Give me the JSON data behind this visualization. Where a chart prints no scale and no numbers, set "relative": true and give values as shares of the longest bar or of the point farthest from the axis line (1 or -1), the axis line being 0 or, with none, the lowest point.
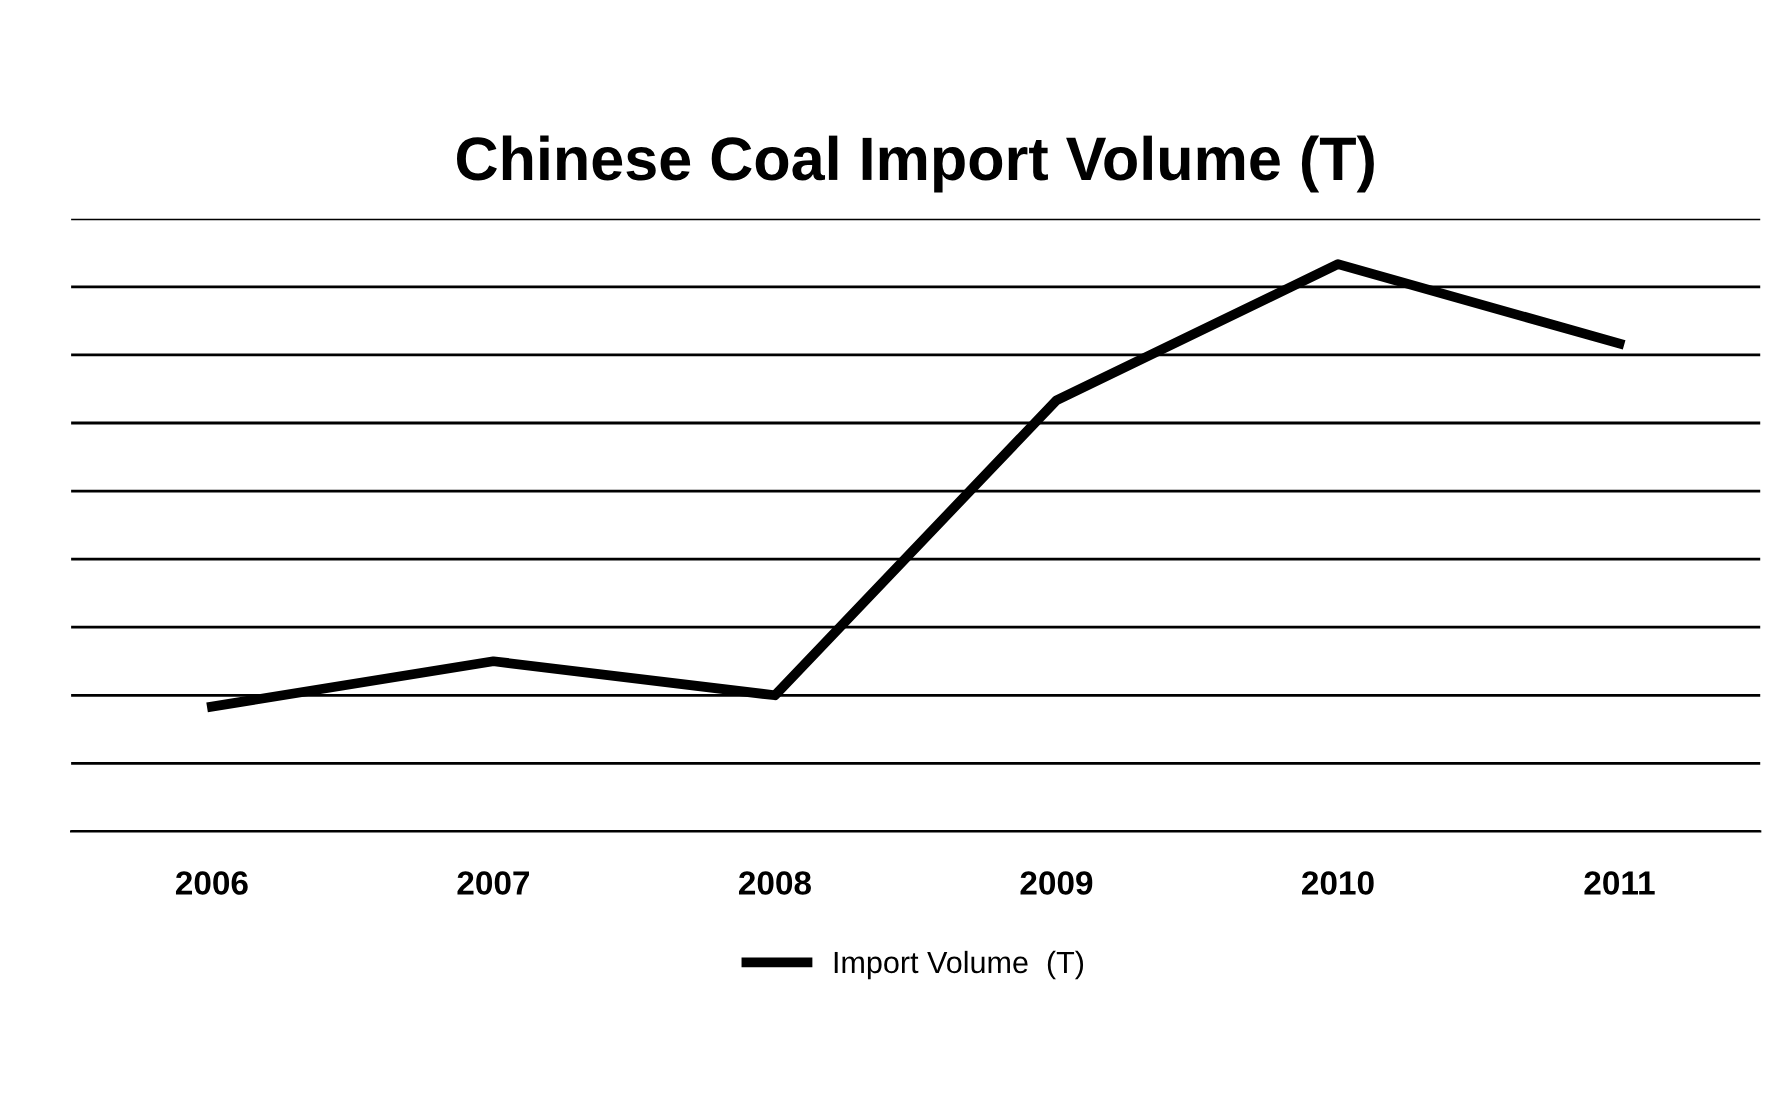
{
  "chart_data": {
    "type": "line",
    "title": "Chinese Coal Import Volume (T)",
    "categories": [
      "2006",
      "2007",
      "2008",
      "2009",
      "2010",
      "2011"
    ],
    "relative": true,
    "series": [
      {
        "name": "Import Volume  (T)",
        "color": "#000000",
        "values": [
          0.22,
          0.3,
          0.24,
          0.76,
          1.0,
          0.86
        ]
      }
    ],
    "grid": "y",
    "legend": "bottom",
    "marker": "none",
    "line_style": "solid"
  }
}
